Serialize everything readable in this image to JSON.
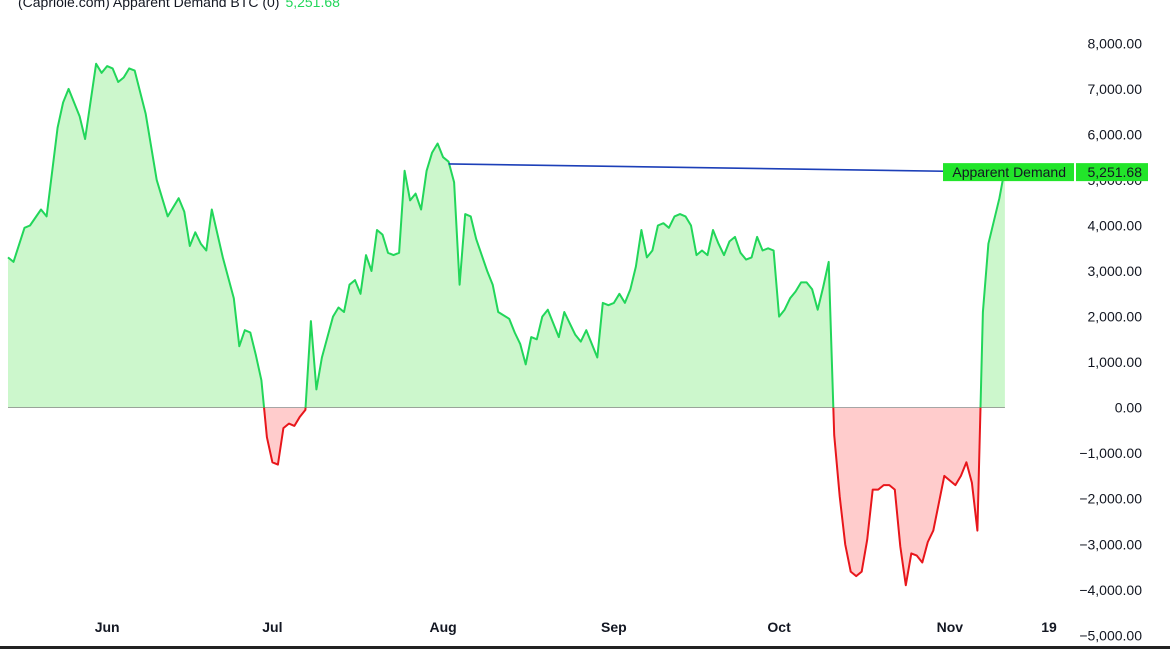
{
  "header": {
    "title": "(Capriole.com) Apparent Demand BTC (0)",
    "value": "5,251.68"
  },
  "colors": {
    "positive_line": "#22d65a",
    "positive_fill": "#ccf7cc",
    "negative_line": "#e8161b",
    "negative_fill": "#ffcccc",
    "trendline": "#1c3fb8",
    "label_bg": "#22e52a"
  },
  "chart_data": {
    "type": "area",
    "title": "(Capriole.com) Apparent Demand BTC (0)",
    "series": [
      {
        "name": "Apparent Demand"
      }
    ],
    "ylim": [
      -5300,
      8600
    ],
    "y_ticks": [
      8000,
      7000,
      6000,
      5000,
      4000,
      3000,
      2000,
      1000,
      0,
      -1000,
      -2000,
      -3000,
      -4000,
      -5000
    ],
    "y_tick_labels": [
      "8,000.00",
      "7,000.00",
      "6,000.00",
      "5,000.00",
      "4,000.00",
      "3,000.00",
      "2,000.00",
      "1,000.00",
      "0.00",
      "−1,000.00",
      "−2,000.00",
      "−3,000.00",
      "−4,000.00",
      "−5,000.00"
    ],
    "x_ticks": [
      {
        "label": "Jun",
        "date": "2024-06-01"
      },
      {
        "label": "Jul",
        "date": "2024-07-01"
      },
      {
        "label": "Aug",
        "date": "2024-08-01"
      },
      {
        "label": "Sep",
        "date": "2024-09-01"
      },
      {
        "label": "Oct",
        "date": "2024-10-01"
      },
      {
        "label": "Nov",
        "date": "2024-11-01"
      },
      {
        "label": "19",
        "date": "2024-11-19"
      }
    ],
    "points": [
      [
        "2024-05-14",
        3300
      ],
      [
        "2024-05-15",
        3200
      ],
      [
        "2024-05-17",
        3950
      ],
      [
        "2024-05-18",
        4000
      ],
      [
        "2024-05-20",
        4350
      ],
      [
        "2024-05-21",
        4200
      ],
      [
        "2024-05-23",
        6150
      ],
      [
        "2024-05-24",
        6700
      ],
      [
        "2024-05-25",
        7000
      ],
      [
        "2024-05-27",
        6400
      ],
      [
        "2024-05-28",
        5900
      ],
      [
        "2024-05-30",
        7550
      ],
      [
        "2024-05-31",
        7350
      ],
      [
        "2024-06-01",
        7500
      ],
      [
        "2024-06-02",
        7450
      ],
      [
        "2024-06-03",
        7150
      ],
      [
        "2024-06-04",
        7250
      ],
      [
        "2024-06-05",
        7450
      ],
      [
        "2024-06-06",
        7400
      ],
      [
        "2024-06-08",
        6450
      ],
      [
        "2024-06-10",
        5000
      ],
      [
        "2024-06-11",
        4600
      ],
      [
        "2024-06-12",
        4200
      ],
      [
        "2024-06-14",
        4600
      ],
      [
        "2024-06-15",
        4300
      ],
      [
        "2024-06-16",
        3550
      ],
      [
        "2024-06-17",
        3850
      ],
      [
        "2024-06-18",
        3600
      ],
      [
        "2024-06-19",
        3450
      ],
      [
        "2024-06-20",
        4350
      ],
      [
        "2024-06-22",
        3300
      ],
      [
        "2024-06-24",
        2400
      ],
      [
        "2024-06-25",
        1350
      ],
      [
        "2024-06-26",
        1700
      ],
      [
        "2024-06-27",
        1650
      ],
      [
        "2024-06-28",
        1150
      ],
      [
        "2024-06-29",
        600
      ],
      [
        "2024-06-30",
        -650
      ],
      [
        "2024-07-01",
        -1200
      ],
      [
        "2024-07-02",
        -1250
      ],
      [
        "2024-07-03",
        -450
      ],
      [
        "2024-07-04",
        -350
      ],
      [
        "2024-07-05",
        -400
      ],
      [
        "2024-07-06",
        -200
      ],
      [
        "2024-07-07",
        -50
      ],
      [
        "2024-07-08",
        1900
      ],
      [
        "2024-07-09",
        400
      ],
      [
        "2024-07-10",
        1100
      ],
      [
        "2024-07-12",
        2000
      ],
      [
        "2024-07-13",
        2200
      ],
      [
        "2024-07-14",
        2100
      ],
      [
        "2024-07-15",
        2700
      ],
      [
        "2024-07-16",
        2800
      ],
      [
        "2024-07-17",
        2500
      ],
      [
        "2024-07-18",
        3350
      ],
      [
        "2024-07-19",
        3000
      ],
      [
        "2024-07-20",
        3900
      ],
      [
        "2024-07-21",
        3800
      ],
      [
        "2024-07-22",
        3400
      ],
      [
        "2024-07-23",
        3350
      ],
      [
        "2024-07-24",
        3400
      ],
      [
        "2024-07-25",
        5200
      ],
      [
        "2024-07-26",
        4550
      ],
      [
        "2024-07-27",
        4700
      ],
      [
        "2024-07-28",
        4350
      ],
      [
        "2024-07-29",
        5200
      ],
      [
        "2024-07-30",
        5600
      ],
      [
        "2024-07-31",
        5800
      ],
      [
        "2024-08-01",
        5500
      ],
      [
        "2024-08-02",
        5400
      ],
      [
        "2024-08-03",
        4950
      ],
      [
        "2024-08-04",
        2700
      ],
      [
        "2024-08-05",
        4250
      ],
      [
        "2024-08-06",
        4200
      ],
      [
        "2024-08-07",
        3700
      ],
      [
        "2024-08-09",
        3000
      ],
      [
        "2024-08-10",
        2700
      ],
      [
        "2024-08-11",
        2100
      ],
      [
        "2024-08-13",
        1950
      ],
      [
        "2024-08-14",
        1650
      ],
      [
        "2024-08-15",
        1400
      ],
      [
        "2024-08-16",
        950
      ],
      [
        "2024-08-17",
        1550
      ],
      [
        "2024-08-18",
        1500
      ],
      [
        "2024-08-19",
        2000
      ],
      [
        "2024-08-20",
        2150
      ],
      [
        "2024-08-21",
        1850
      ],
      [
        "2024-08-22",
        1550
      ],
      [
        "2024-08-23",
        2100
      ],
      [
        "2024-08-24",
        1850
      ],
      [
        "2024-08-25",
        1600
      ],
      [
        "2024-08-26",
        1450
      ],
      [
        "2024-08-27",
        1700
      ],
      [
        "2024-08-28",
        1400
      ],
      [
        "2024-08-29",
        1100
      ],
      [
        "2024-08-30",
        2300
      ],
      [
        "2024-08-31",
        2250
      ],
      [
        "2024-09-01",
        2300
      ],
      [
        "2024-09-02",
        2500
      ],
      [
        "2024-09-03",
        2300
      ],
      [
        "2024-09-04",
        2600
      ],
      [
        "2024-09-05",
        3100
      ],
      [
        "2024-09-06",
        3900
      ],
      [
        "2024-09-07",
        3300
      ],
      [
        "2024-09-08",
        3450
      ],
      [
        "2024-09-09",
        4000
      ],
      [
        "2024-09-10",
        4050
      ],
      [
        "2024-09-11",
        3950
      ],
      [
        "2024-09-12",
        4200
      ],
      [
        "2024-09-13",
        4250
      ],
      [
        "2024-09-14",
        4200
      ],
      [
        "2024-09-15",
        4000
      ],
      [
        "2024-09-16",
        3350
      ],
      [
        "2024-09-17",
        3450
      ],
      [
        "2024-09-18",
        3350
      ],
      [
        "2024-09-19",
        3900
      ],
      [
        "2024-09-20",
        3600
      ],
      [
        "2024-09-21",
        3350
      ],
      [
        "2024-09-22",
        3650
      ],
      [
        "2024-09-23",
        3750
      ],
      [
        "2024-09-24",
        3400
      ],
      [
        "2024-09-25",
        3250
      ],
      [
        "2024-09-26",
        3300
      ],
      [
        "2024-09-27",
        3750
      ],
      [
        "2024-09-28",
        3450
      ],
      [
        "2024-09-29",
        3500
      ],
      [
        "2024-09-30",
        3450
      ],
      [
        "2024-10-01",
        2000
      ],
      [
        "2024-10-02",
        2150
      ],
      [
        "2024-10-03",
        2400
      ],
      [
        "2024-10-04",
        2550
      ],
      [
        "2024-10-05",
        2750
      ],
      [
        "2024-10-06",
        2750
      ],
      [
        "2024-10-07",
        2600
      ],
      [
        "2024-10-08",
        2150
      ],
      [
        "2024-10-09",
        2650
      ],
      [
        "2024-10-10",
        3200
      ],
      [
        "2024-10-11",
        -600
      ],
      [
        "2024-10-12",
        -1950
      ],
      [
        "2024-10-13",
        -3000
      ],
      [
        "2024-10-14",
        -3600
      ],
      [
        "2024-10-15",
        -3700
      ],
      [
        "2024-10-16",
        -3600
      ],
      [
        "2024-10-17",
        -2900
      ],
      [
        "2024-10-18",
        -1800
      ],
      [
        "2024-10-19",
        -1800
      ],
      [
        "2024-10-20",
        -1700
      ],
      [
        "2024-10-21",
        -1700
      ],
      [
        "2024-10-22",
        -1800
      ],
      [
        "2024-10-23",
        -3050
      ],
      [
        "2024-10-24",
        -3900
      ],
      [
        "2024-10-25",
        -3200
      ],
      [
        "2024-10-26",
        -3250
      ],
      [
        "2024-10-27",
        -3400
      ],
      [
        "2024-10-28",
        -2950
      ],
      [
        "2024-10-29",
        -2700
      ],
      [
        "2024-10-30",
        -2100
      ],
      [
        "2024-10-31",
        -1500
      ],
      [
        "2024-11-01",
        -1600
      ],
      [
        "2024-11-02",
        -1700
      ],
      [
        "2024-11-03",
        -1500
      ],
      [
        "2024-11-04",
        -1200
      ],
      [
        "2024-11-05",
        -1650
      ],
      [
        "2024-11-06",
        -2700
      ],
      [
        "2024-11-07",
        2100
      ],
      [
        "2024-11-08",
        3600
      ],
      [
        "2024-11-10",
        4600
      ],
      [
        "2024-11-11",
        5251.68
      ]
    ],
    "trendline": {
      "start": [
        "2024-08-02",
        5351.68
      ],
      "end": [
        "2024-11-11",
        5171.68
      ]
    },
    "last_label": {
      "name": "Apparent Demand",
      "value": "5,251.68"
    },
    "grid": false,
    "zero_line": true
  }
}
